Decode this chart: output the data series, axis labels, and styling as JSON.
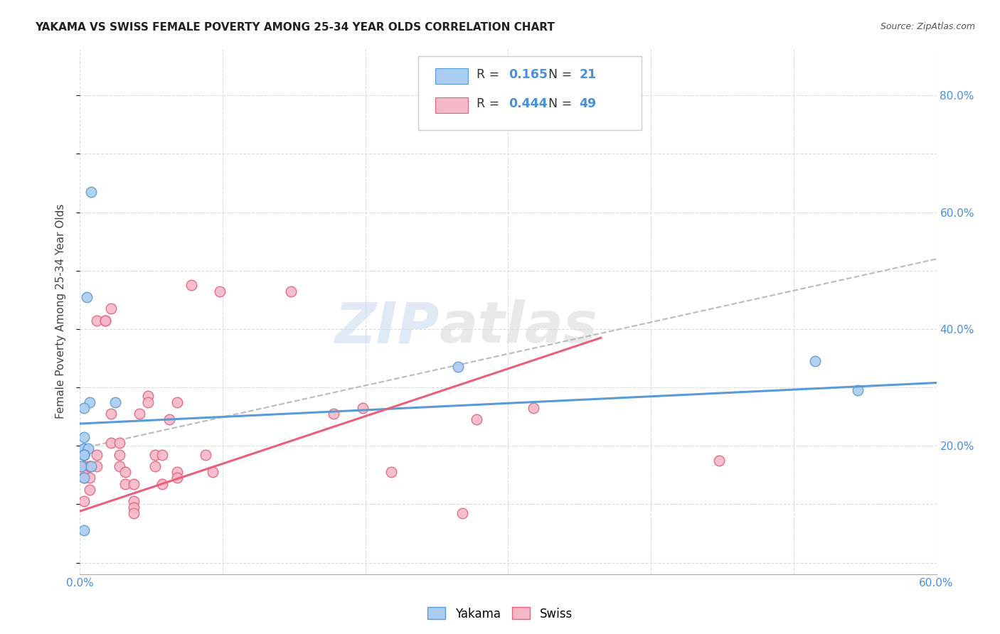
{
  "title": "YAKAMA VS SWISS FEMALE POVERTY AMONG 25-34 YEAR OLDS CORRELATION CHART",
  "source": "Source: ZipAtlas.com",
  "ylabel": "Female Poverty Among 25-34 Year Olds",
  "x_min": 0.0,
  "x_max": 0.6,
  "y_min": -0.02,
  "y_max": 0.88,
  "x_ticks": [
    0.0,
    0.1,
    0.2,
    0.3,
    0.4,
    0.5,
    0.6
  ],
  "x_tick_labels": [
    "0.0%",
    "",
    "",
    "",
    "",
    "",
    "60.0%"
  ],
  "y_ticks_right": [
    0.0,
    0.2,
    0.4,
    0.6,
    0.8
  ],
  "y_tick_labels_right": [
    "",
    "20.0%",
    "40.0%",
    "60.0%",
    "80.0%"
  ],
  "legend_R_yakama": "0.165",
  "legend_N_yakama": "21",
  "legend_R_swiss": "0.444",
  "legend_N_swiss": "49",
  "yakama_color": "#aaccf0",
  "swiss_color": "#f5b8c8",
  "yakama_edge_color": "#5b9bd5",
  "swiss_edge_color": "#e8607a",
  "yakama_line_color": "#5b9bd5",
  "swiss_line_color": "#e8607a",
  "dashed_line_color": "#bbbbbb",
  "background_color": "#ffffff",
  "grid_color": "#dddddd",
  "watermark_text1": "ZIP",
  "watermark_text2": "atlas",
  "yakama_scatter_x": [
    0.008,
    0.005,
    0.007,
    0.003,
    0.003,
    0.003,
    0.003,
    0.006,
    0.003,
    0.003,
    0.001,
    0.008,
    0.025,
    0.003,
    0.003,
    0.003,
    0.265,
    0.003,
    0.515,
    0.545,
    0.003
  ],
  "yakama_scatter_y": [
    0.635,
    0.455,
    0.275,
    0.265,
    0.215,
    0.195,
    0.195,
    0.195,
    0.185,
    0.185,
    0.165,
    0.165,
    0.275,
    0.185,
    0.185,
    0.145,
    0.335,
    0.055,
    0.345,
    0.295,
    0.185
  ],
  "swiss_scatter_x": [
    0.003,
    0.003,
    0.003,
    0.003,
    0.003,
    0.007,
    0.007,
    0.007,
    0.007,
    0.012,
    0.012,
    0.012,
    0.018,
    0.018,
    0.022,
    0.022,
    0.022,
    0.028,
    0.028,
    0.028,
    0.032,
    0.032,
    0.038,
    0.038,
    0.038,
    0.038,
    0.042,
    0.048,
    0.048,
    0.053,
    0.053,
    0.058,
    0.058,
    0.063,
    0.068,
    0.068,
    0.068,
    0.078,
    0.088,
    0.093,
    0.098,
    0.148,
    0.178,
    0.198,
    0.218,
    0.268,
    0.278,
    0.318,
    0.448
  ],
  "swiss_scatter_y": [
    0.185,
    0.165,
    0.155,
    0.145,
    0.105,
    0.165,
    0.165,
    0.145,
    0.125,
    0.185,
    0.165,
    0.415,
    0.415,
    0.415,
    0.435,
    0.255,
    0.205,
    0.205,
    0.185,
    0.165,
    0.155,
    0.135,
    0.135,
    0.105,
    0.095,
    0.085,
    0.255,
    0.285,
    0.275,
    0.185,
    0.165,
    0.185,
    0.135,
    0.245,
    0.275,
    0.155,
    0.145,
    0.475,
    0.185,
    0.155,
    0.465,
    0.465,
    0.255,
    0.265,
    0.155,
    0.085,
    0.245,
    0.265,
    0.175
  ],
  "yakama_trendline_x": [
    0.0,
    0.6
  ],
  "yakama_trendline_y": [
    0.238,
    0.308
  ],
  "swiss_trendline_x": [
    0.0,
    0.365
  ],
  "swiss_trendline_y": [
    0.088,
    0.385
  ],
  "dashed_trendline_x": [
    0.0,
    0.6
  ],
  "dashed_trendline_y": [
    0.195,
    0.52
  ]
}
